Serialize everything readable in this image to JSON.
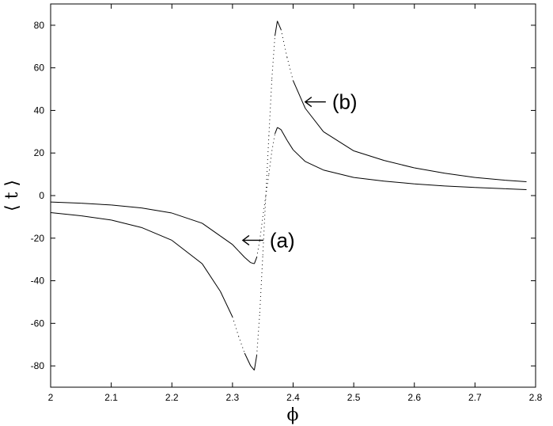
{
  "chart_data": {
    "type": "line",
    "xlabel": "ϕ",
    "ylabel": "⟨ t ⟩",
    "xlim": [
      2,
      2.8
    ],
    "ylim": [
      -90,
      90
    ],
    "grid": false,
    "x_ticks": [
      "2",
      "2.1",
      "2.2",
      "2.3",
      "2.4",
      "2.5",
      "2.6",
      "2.7",
      "2.8"
    ],
    "y_ticks": [
      "-80",
      "-60",
      "-40",
      "-20",
      "0",
      "20",
      "40",
      "60",
      "80"
    ],
    "series": [
      {
        "x": [
          2.0,
          2.05,
          2.1,
          2.15,
          2.2,
          2.25,
          2.28,
          2.3,
          2.31,
          2.32,
          2.33,
          2.336,
          2.34,
          2.345,
          2.35,
          2.355,
          2.36,
          2.365,
          2.37,
          2.374,
          2.38,
          2.39,
          2.4,
          2.42,
          2.45,
          2.5,
          2.55,
          2.6,
          2.65,
          2.7,
          2.75,
          2.785
        ],
        "y": [
          -3,
          -3.6,
          -4.4,
          -5.8,
          -8.2,
          -13,
          -19,
          -23,
          -26,
          -29,
          -31.5,
          -32,
          -29,
          -21,
          -10,
          0,
          10,
          21,
          29,
          32,
          31,
          26,
          21.5,
          16,
          12,
          8.5,
          6.8,
          5.5,
          4.5,
          3.8,
          3.2,
          2.8
        ]
      },
      {
        "x": [
          2.0,
          2.05,
          2.1,
          2.15,
          2.2,
          2.25,
          2.28,
          2.3,
          2.31,
          2.32,
          2.33,
          2.336,
          2.34,
          2.345,
          2.35,
          2.355,
          2.36,
          2.365,
          2.37,
          2.374,
          2.38,
          2.39,
          2.4,
          2.42,
          2.45,
          2.5,
          2.55,
          2.6,
          2.65,
          2.7,
          2.75,
          2.785
        ],
        "y": [
          -8,
          -9.5,
          -11.5,
          -15,
          -21,
          -32,
          -45,
          -57,
          -66,
          -74,
          -80,
          -82,
          -75,
          -55,
          -28,
          0,
          28,
          55,
          75,
          82,
          78,
          65,
          54,
          41,
          30,
          21,
          16.5,
          13,
          10.5,
          8.5,
          7.2,
          6.5
        ]
      }
    ],
    "annotations": [
      {
        "text": "(a)",
        "arrow_x": 2.317,
        "arrow_y": -21
      },
      {
        "text": "(b)",
        "arrow_x": 2.42,
        "arrow_y": 44
      }
    ]
  }
}
